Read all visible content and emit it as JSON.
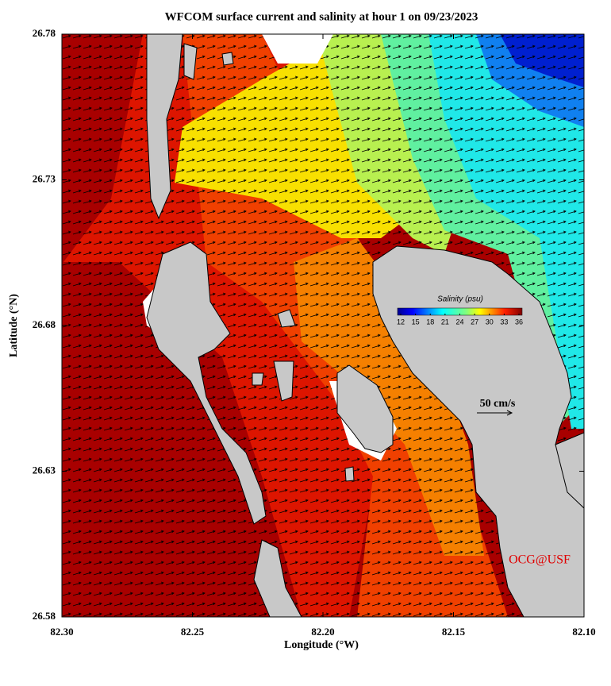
{
  "title": "WFCOM surface current and salinity at hour 1 on 09/23/2023",
  "x_axis": {
    "label": "Longitude (°W)",
    "lim": [
      82.3,
      82.1
    ],
    "ticks": [
      {
        "value": 82.3,
        "label": "82.30"
      },
      {
        "value": 82.25,
        "label": "82.25"
      },
      {
        "value": 82.2,
        "label": "82.20"
      },
      {
        "value": 82.15,
        "label": "82.15"
      },
      {
        "value": 82.1,
        "label": "82.10"
      }
    ]
  },
  "y_axis": {
    "label": "Latitude (°N)",
    "lim": [
      26.58,
      26.78
    ],
    "ticks": [
      26.58,
      26.63,
      26.68,
      26.73,
      26.78
    ]
  },
  "colorbar": {
    "title": "Salinity (psu)",
    "lim": [
      12,
      36
    ],
    "ticks": [
      12,
      15,
      18,
      21,
      24,
      27,
      30,
      33,
      36
    ]
  },
  "scale_label": "50 cm/s",
  "credit": "OCG@USF"
}
